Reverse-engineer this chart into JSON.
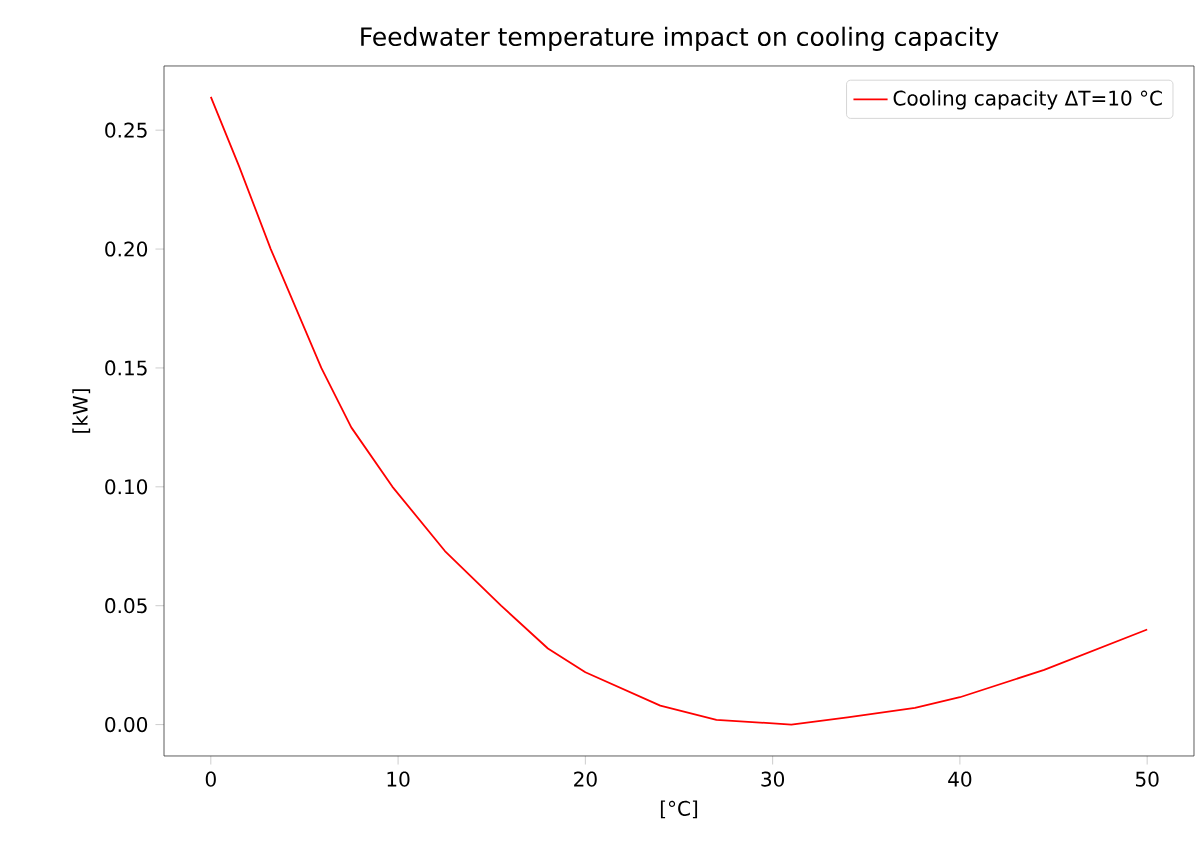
{
  "chart_data": {
    "type": "line",
    "title": "Feedwater temperature impact on cooling capacity",
    "xlabel": "[°C]",
    "ylabel": "[kW]",
    "series": [
      {
        "name": "Cooling capacity ΔT=10 °C",
        "color": "#ff0000",
        "x": [
          0,
          1.5,
          3.2,
          5.9,
          7.5,
          9.7,
          12.5,
          15.5,
          18,
          20,
          24,
          27,
          31,
          34,
          37.6,
          40,
          44.5,
          50
        ],
        "values": [
          0.264,
          0.235,
          0.2,
          0.15,
          0.125,
          0.1,
          0.073,
          0.05,
          0.032,
          0.022,
          0.008,
          0.002,
          0,
          0.003,
          0.007,
          0.0115,
          0.023,
          0.04
        ]
      }
    ],
    "xlim": [
      -2.5,
      52.5
    ],
    "ylim": [
      -0.0132,
      0.277
    ],
    "xticks": [
      0,
      10,
      20,
      30,
      40,
      50
    ],
    "yticks": [
      {
        "value": 0,
        "label": "0.00"
      },
      {
        "value": 0.05,
        "label": "0.05"
      },
      {
        "value": 0.1,
        "label": "0.10"
      },
      {
        "value": 0.15,
        "label": "0.15"
      },
      {
        "value": 0.2,
        "label": "0.20"
      },
      {
        "value": 0.25,
        "label": "0.25"
      }
    ],
    "legend": "top right",
    "grid": false,
    "line_style": "solid",
    "marker": "none"
  }
}
